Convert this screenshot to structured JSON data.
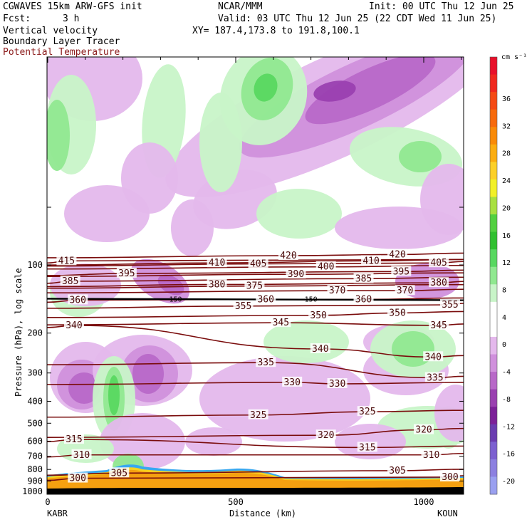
{
  "header": {
    "model": "CGWAVES 15km ARW-GFS init",
    "org": "NCAR/MMM",
    "init": "Init: 00 UTC Thu 12 Jun 25",
    "fcst_label": "Fcst:",
    "fcst_value": "3 h",
    "valid": "Valid: 03 UTC Thu 12 Jun 25 (22 CDT Wed 11 Jun 25)",
    "field1": "Vertical velocity",
    "xy": "XY= 187.4,173.8 to 191.8,100.1",
    "field2": "Boundary Layer Tracer",
    "field3": "Potential Temperature",
    "field3_color": "#8b1a1a"
  },
  "chart_data": {
    "type": "contour",
    "xlabel": "Distance (km)",
    "ylabel": "Pressure (hPa), log scale",
    "x_ticks": [
      "0",
      "500",
      "1000"
    ],
    "y_ticks": [
      "100",
      "200",
      "300",
      "400",
      "500",
      "600",
      "700",
      "800",
      "900",
      "1000"
    ],
    "x_end_labels": {
      "left": "KABR",
      "right": "KOUN"
    },
    "colorbar": {
      "unit": "cm s⁻¹",
      "ticks": [
        "36",
        "32",
        "28",
        "24",
        "20",
        "16",
        "12",
        "8",
        "4",
        "0",
        "-4",
        "-8",
        "-12",
        "-16",
        "-20"
      ],
      "colors": [
        "#e8102a",
        "#f0281e",
        "#f54a14",
        "#f76a0c",
        "#f98a08",
        "#fbad10",
        "#fcd028",
        "#f2f028",
        "#a8e040",
        "#52d040",
        "#30c030",
        "#58d860",
        "#90e890",
        "#c8f4c8",
        "#ffffff",
        "#ffffff",
        "#e4b8ec",
        "#d090dc",
        "#b868c8",
        "#9a40b0",
        "#7c2098",
        "#6a3cb0",
        "#7c60d0",
        "#8c80e0",
        "#9aa0f0"
      ]
    },
    "isentropes": [
      {
        "value": "300",
        "labels": [
          {
            "x": 80,
            "p": 875
          },
          {
            "x": 1070,
            "p": 865
          }
        ]
      },
      {
        "value": "305",
        "labels": [
          {
            "x": 190,
            "p": 830
          },
          {
            "x": 930,
            "p": 810
          }
        ]
      },
      {
        "value": "310",
        "labels": [
          {
            "x": 90,
            "p": 690
          },
          {
            "x": 1020,
            "p": 690
          }
        ]
      },
      {
        "value": "315",
        "labels": [
          {
            "x": 70,
            "p": 590
          },
          {
            "x": 850,
            "p": 640
          }
        ]
      },
      {
        "value": "320",
        "labels": [
          {
            "x": 740,
            "p": 565
          },
          {
            "x": 1000,
            "p": 535
          }
        ]
      },
      {
        "value": "325",
        "labels": [
          {
            "x": 560,
            "p": 460
          },
          {
            "x": 850,
            "p": 445
          }
        ]
      },
      {
        "value": "330",
        "labels": [
          {
            "x": 650,
            "p": 330
          },
          {
            "x": 770,
            "p": 335
          }
        ]
      },
      {
        "value": "335",
        "labels": [
          {
            "x": 580,
            "p": 270
          },
          {
            "x": 1030,
            "p": 315
          }
        ]
      },
      {
        "value": "340",
        "labels": [
          {
            "x": 70,
            "p": 185
          },
          {
            "x": 725,
            "p": 235
          },
          {
            "x": 1025,
            "p": 255
          }
        ]
      },
      {
        "value": "345",
        "labels": [
          {
            "x": 620,
            "p": 180
          },
          {
            "x": 1040,
            "p": 185
          }
        ]
      },
      {
        "value": "350",
        "labels": [
          {
            "x": 720,
            "p": 167
          },
          {
            "x": 930,
            "p": 163
          }
        ]
      },
      {
        "value": "355",
        "labels": [
          {
            "x": 520,
            "p": 152
          },
          {
            "x": 1070,
            "p": 150
          }
        ]
      },
      {
        "value": "360",
        "labels": [
          {
            "x": 80,
            "p": 143
          },
          {
            "x": 580,
            "p": 142
          },
          {
            "x": 840,
            "p": 142
          }
        ]
      },
      {
        "value": "370",
        "labels": [
          {
            "x": 770,
            "p": 130
          },
          {
            "x": 950,
            "p": 130
          }
        ]
      },
      {
        "value": "375",
        "labels": [
          {
            "x": 550,
            "p": 124
          }
        ]
      },
      {
        "value": "380",
        "labels": [
          {
            "x": 450,
            "p": 122
          },
          {
            "x": 1040,
            "p": 120
          }
        ]
      },
      {
        "value": "385",
        "labels": [
          {
            "x": 60,
            "p": 118
          },
          {
            "x": 840,
            "p": 115
          }
        ]
      },
      {
        "value": "390",
        "labels": [
          {
            "x": 660,
            "p": 110
          }
        ]
      },
      {
        "value": "395",
        "labels": [
          {
            "x": 210,
            "p": 109
          },
          {
            "x": 940,
            "p": 107
          }
        ]
      },
      {
        "value": "400",
        "labels": [
          {
            "x": 740,
            "p": 102
          }
        ]
      },
      {
        "value": "405",
        "labels": [
          {
            "x": 560,
            "p": 99
          },
          {
            "x": 1040,
            "p": 98
          }
        ]
      },
      {
        "value": "410",
        "labels": [
          {
            "x": 450,
            "p": 98
          },
          {
            "x": 860,
            "p": 96
          }
        ]
      },
      {
        "value": "415",
        "labels": [
          {
            "x": 50,
            "p": 96
          }
        ]
      },
      {
        "value": "420",
        "labels": [
          {
            "x": 640,
            "p": 91
          },
          {
            "x": 930,
            "p": 90
          }
        ]
      }
    ],
    "tropopause_label": "150",
    "tropopause_labels": [
      {
        "x": 340,
        "p": 141
      },
      {
        "x": 700,
        "p": 141
      }
    ]
  }
}
